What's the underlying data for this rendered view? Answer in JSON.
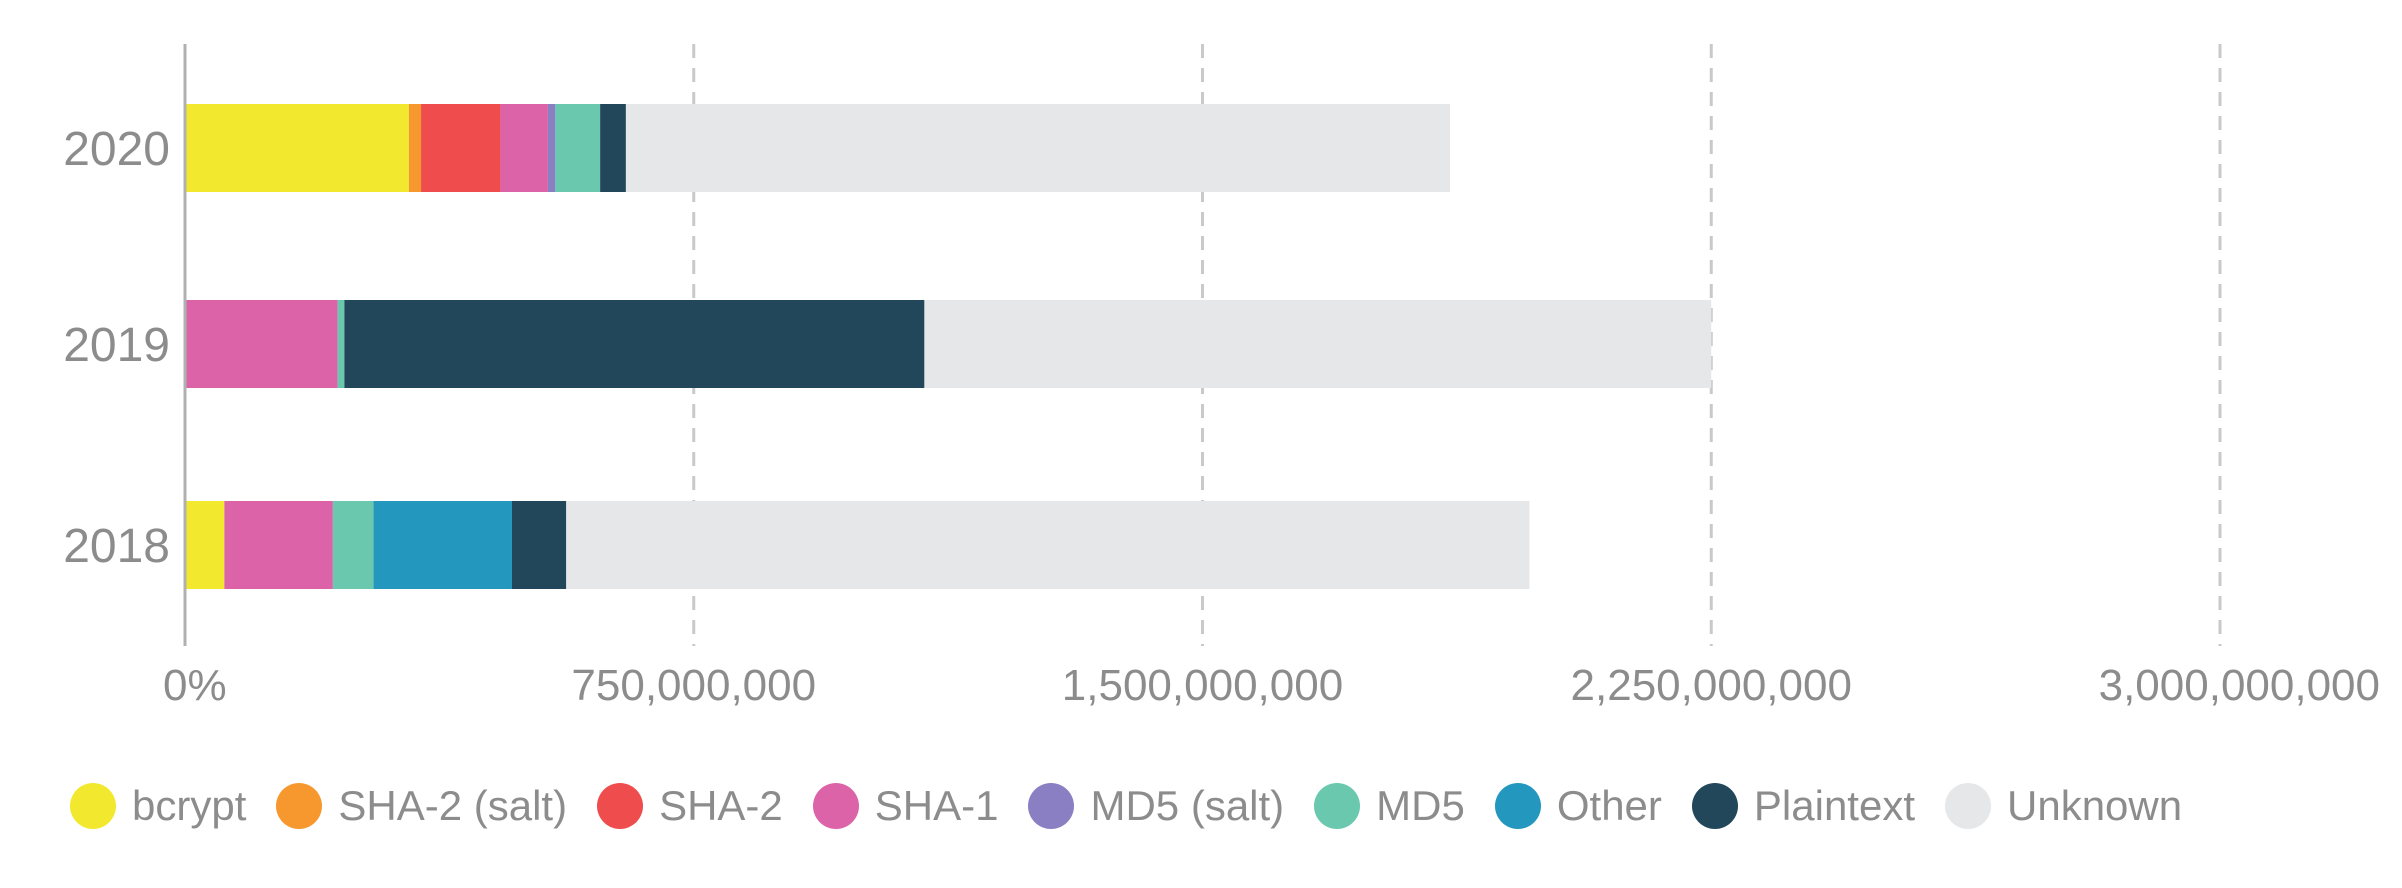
{
  "chart_data": {
    "type": "bar",
    "orientation": "horizontal",
    "stacked": true,
    "categories": [
      "2020",
      "2019",
      "2018"
    ],
    "series": [
      {
        "name": "bcrypt",
        "color": "#f2e92e",
        "values": [
          330000000,
          0,
          58000000
        ]
      },
      {
        "name": "SHA-2 (salt)",
        "color": "#f7982f",
        "values": [
          18000000,
          0,
          0
        ]
      },
      {
        "name": "SHA-2",
        "color": "#ef4d4d",
        "values": [
          117000000,
          0,
          0
        ]
      },
      {
        "name": "SHA-1",
        "color": "#dc63a8",
        "values": [
          70000000,
          225000000,
          160000000
        ]
      },
      {
        "name": "MD5 (salt)",
        "color": "#8a7fc2",
        "values": [
          11000000,
          0,
          0
        ]
      },
      {
        "name": "MD5",
        "color": "#69c8ae",
        "values": [
          66000000,
          10000000,
          60000000
        ]
      },
      {
        "name": "Other",
        "color": "#2397bd",
        "values": [
          0,
          0,
          204000000
        ]
      },
      {
        "name": "Plaintext",
        "color": "#22475a",
        "values": [
          38000000,
          855000000,
          80000000
        ]
      },
      {
        "name": "Unknown",
        "color": "#e6e7e8",
        "values": [
          1215000000,
          1160000000,
          1420000000
        ]
      }
    ],
    "xlim": [
      0,
      3000000000
    ],
    "xticks": [
      0,
      750000000,
      1500000000,
      2250000000,
      3000000000
    ],
    "xtick_labels": [
      "0%",
      "750,000,000",
      "1,500,000,000",
      "2,250,000,000",
      "3,000,000,000"
    ],
    "grid": "vertical-dashed",
    "legend_position": "bottom",
    "title": "",
    "xlabel": "",
    "ylabel": ""
  }
}
